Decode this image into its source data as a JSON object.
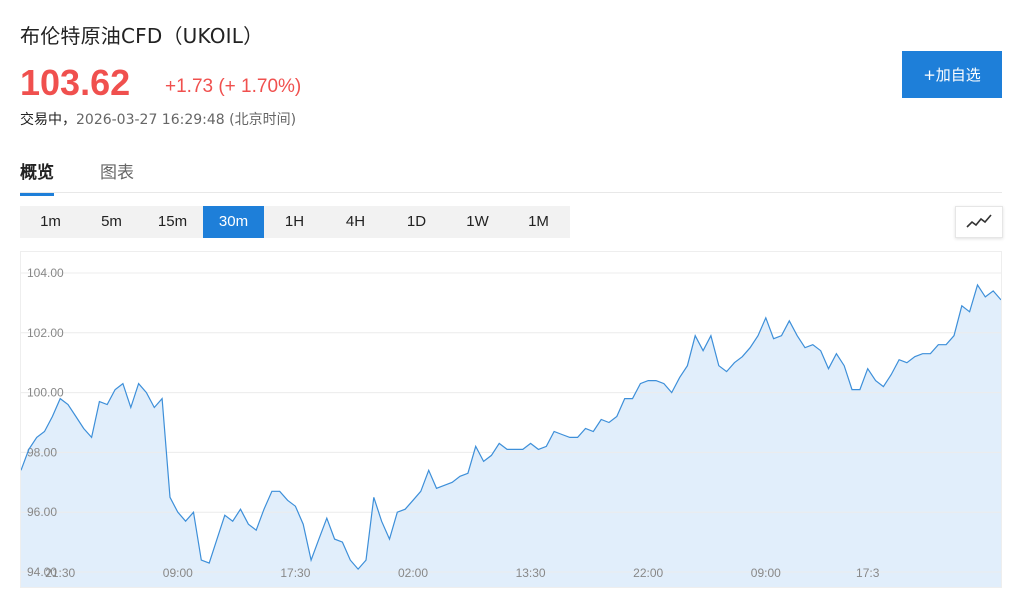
{
  "header": {
    "title": "布伦特原油CFD（UKOIL）",
    "price": "103.62",
    "change": "+1.73 (+ 1.70%)",
    "status": "交易中，",
    "timestamp": "2026-03-27 16:29:48 (北京时间)",
    "add_watchlist_label": "+加自选"
  },
  "tabs": [
    {
      "label": "概览",
      "active": true
    },
    {
      "label": "图表",
      "active": false
    }
  ],
  "intervals": [
    {
      "label": "1m"
    },
    {
      "label": "5m"
    },
    {
      "label": "15m"
    },
    {
      "label": "30m",
      "active": true
    },
    {
      "label": "1H"
    },
    {
      "label": "4H"
    },
    {
      "label": "1D"
    },
    {
      "label": "1W"
    },
    {
      "label": "1M"
    }
  ],
  "chart_type_icon": "line-chart-icon",
  "colors": {
    "up": "#f0504e",
    "accent": "#1e7fd9",
    "line": "#3d8fd9",
    "area": "#e1eefb"
  },
  "chart_data": {
    "type": "area",
    "ylim": [
      93.5,
      104.7
    ],
    "yticks": [
      "104.00",
      "102.00",
      "100.00",
      "98.00",
      "96.00",
      "94.00"
    ],
    "xticks": [
      {
        "label": "21:30",
        "index": 5
      },
      {
        "label": "09:00",
        "index": 20
      },
      {
        "label": "17:30",
        "index": 35
      },
      {
        "label": "02:00",
        "index": 50
      },
      {
        "label": "13:30",
        "index": 65
      },
      {
        "label": "22:00",
        "index": 80
      },
      {
        "label": "09:00",
        "index": 95
      },
      {
        "label": "17:3",
        "index": 108
      }
    ],
    "values": [
      97.4,
      98.1,
      98.5,
      98.7,
      99.2,
      99.8,
      99.6,
      99.2,
      98.8,
      98.5,
      99.7,
      99.6,
      100.1,
      100.3,
      99.5,
      100.3,
      100.0,
      99.5,
      99.8,
      96.5,
      96.0,
      95.7,
      96.0,
      94.4,
      94.3,
      95.1,
      95.9,
      95.7,
      96.1,
      95.6,
      95.4,
      96.1,
      96.7,
      96.7,
      96.4,
      96.2,
      95.6,
      94.4,
      95.1,
      95.8,
      95.1,
      95.0,
      94.4,
      94.1,
      94.4,
      96.5,
      95.7,
      95.1,
      96.0,
      96.1,
      96.4,
      96.7,
      97.4,
      96.8,
      96.9,
      97.0,
      97.2,
      97.3,
      98.2,
      97.7,
      97.9,
      98.3,
      98.1,
      98.1,
      98.1,
      98.3,
      98.1,
      98.2,
      98.7,
      98.6,
      98.5,
      98.5,
      98.8,
      98.7,
      99.1,
      99.0,
      99.2,
      99.8,
      99.8,
      100.3,
      100.4,
      100.4,
      100.3,
      100.0,
      100.5,
      100.9,
      101.9,
      101.4,
      101.9,
      100.9,
      100.7,
      101.0,
      101.2,
      101.5,
      101.9,
      102.5,
      101.8,
      101.9,
      102.4,
      101.9,
      101.5,
      101.6,
      101.4,
      100.8,
      101.3,
      100.9,
      100.1,
      100.1,
      100.8,
      100.4,
      100.2,
      100.6,
      101.1,
      101.0,
      101.2,
      101.3,
      101.3,
      101.6,
      101.6,
      101.9,
      102.9,
      102.7,
      103.6,
      103.2,
      103.4,
      103.1
    ]
  }
}
